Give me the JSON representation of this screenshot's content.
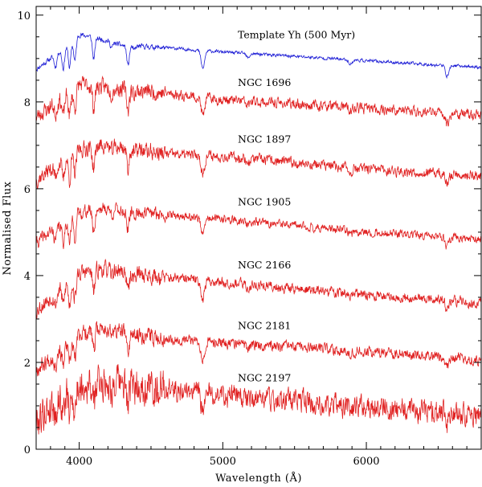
{
  "chart_data": {
    "type": "line",
    "title": "",
    "xlabel": "Wavelength (Å)",
    "ylabel": "Normalised Flux",
    "xlim": [
      3700,
      6800
    ],
    "ylim": [
      0,
      10.2
    ],
    "xticks": [
      4000,
      5000,
      6000
    ],
    "yticks": [
      0,
      2,
      4,
      6,
      8,
      10
    ],
    "grid": false,
    "absorption_lines": [
      {
        "w": 3835,
        "depth": 0.28
      },
      {
        "w": 3889,
        "depth": 0.45
      },
      {
        "w": 3933,
        "depth": 0.55
      },
      {
        "w": 3970,
        "depth": 0.5
      },
      {
        "w": 4101,
        "depth": 0.5
      },
      {
        "w": 4226,
        "depth": 0.12
      },
      {
        "w": 4340,
        "depth": 0.45
      },
      {
        "w": 4383,
        "depth": 0.1
      },
      {
        "w": 4861,
        "depth": 0.42
      },
      {
        "w": 5175,
        "depth": 0.1
      },
      {
        "w": 5890,
        "depth": 0.1
      },
      {
        "w": 6563,
        "depth": 0.25
      }
    ],
    "series": [
      {
        "name": "Template Yh (500 Myr)",
        "label": "Template Yh (500 Myr)",
        "color": "#1f1fd6",
        "anchors": [
          [
            3700,
            8.75
          ],
          [
            3800,
            9.0
          ],
          [
            3900,
            9.25
          ],
          [
            4000,
            9.55
          ],
          [
            4100,
            9.5
          ],
          [
            4300,
            9.3
          ],
          [
            4600,
            9.25
          ],
          [
            5000,
            9.15
          ],
          [
            5500,
            9.05
          ],
          [
            6000,
            8.95
          ],
          [
            6500,
            8.85
          ],
          [
            6800,
            8.8
          ]
        ],
        "noise": 0.03,
        "seed": 11
      },
      {
        "name": "NGC 1696",
        "label": "NGC 1696",
        "color": "#e02020",
        "anchors": [
          [
            3700,
            7.65
          ],
          [
            3800,
            7.9
          ],
          [
            3900,
            8.15
          ],
          [
            4000,
            8.4
          ],
          [
            4150,
            8.35
          ],
          [
            4300,
            8.3
          ],
          [
            4600,
            8.2
          ],
          [
            5000,
            8.05
          ],
          [
            5500,
            7.95
          ],
          [
            6000,
            7.85
          ],
          [
            6500,
            7.75
          ],
          [
            6800,
            7.7
          ]
        ],
        "noise": 0.1,
        "seed": 23
      },
      {
        "name": "NGC 1897",
        "label": "NGC 1897",
        "color": "#e02020",
        "anchors": [
          [
            3700,
            6.2
          ],
          [
            3800,
            6.45
          ],
          [
            3900,
            6.7
          ],
          [
            4000,
            6.9
          ],
          [
            4150,
            7.0
          ],
          [
            4300,
            6.95
          ],
          [
            4600,
            6.8
          ],
          [
            5000,
            6.75
          ],
          [
            5500,
            6.6
          ],
          [
            6000,
            6.45
          ],
          [
            6500,
            6.35
          ],
          [
            6800,
            6.3
          ]
        ],
        "noise": 0.1,
        "seed": 37
      },
      {
        "name": "NGC 1905",
        "label": "NGC 1905",
        "color": "#e02020",
        "anchors": [
          [
            3700,
            4.75
          ],
          [
            3800,
            5.0
          ],
          [
            3900,
            5.25
          ],
          [
            4000,
            5.45
          ],
          [
            4150,
            5.55
          ],
          [
            4300,
            5.5
          ],
          [
            4600,
            5.4
          ],
          [
            5000,
            5.3
          ],
          [
            5500,
            5.15
          ],
          [
            6000,
            5.0
          ],
          [
            6500,
            4.9
          ],
          [
            6800,
            4.85
          ]
        ],
        "noise": 0.08,
        "seed": 41
      },
      {
        "name": "NGC 2166",
        "label": "NGC 2166",
        "color": "#e02020",
        "anchors": [
          [
            3700,
            3.2
          ],
          [
            3800,
            3.5
          ],
          [
            3900,
            3.8
          ],
          [
            4000,
            4.05
          ],
          [
            4150,
            4.15
          ],
          [
            4300,
            4.1
          ],
          [
            4600,
            3.95
          ],
          [
            5000,
            3.85
          ],
          [
            5500,
            3.7
          ],
          [
            6000,
            3.55
          ],
          [
            6500,
            3.45
          ],
          [
            6800,
            3.35
          ]
        ],
        "noise": 0.1,
        "seed": 53
      },
      {
        "name": "NGC 2181",
        "label": "NGC 2181",
        "color": "#e02020",
        "anchors": [
          [
            3700,
            1.85
          ],
          [
            3800,
            2.1
          ],
          [
            3900,
            2.4
          ],
          [
            4000,
            2.65
          ],
          [
            4150,
            2.8
          ],
          [
            4300,
            2.7
          ],
          [
            4600,
            2.55
          ],
          [
            5000,
            2.45
          ],
          [
            5500,
            2.35
          ],
          [
            6000,
            2.25
          ],
          [
            6500,
            2.15
          ],
          [
            6800,
            2.05
          ]
        ],
        "noise": 0.1,
        "seed": 67
      },
      {
        "name": "NGC 2197",
        "label": "NGC 2197",
        "color": "#e02020",
        "anchors": [
          [
            3700,
            0.65
          ],
          [
            3800,
            1.0
          ],
          [
            3900,
            1.3
          ],
          [
            4000,
            1.45
          ],
          [
            4150,
            1.55
          ],
          [
            4300,
            1.5
          ],
          [
            4600,
            1.4
          ],
          [
            5000,
            1.25
          ],
          [
            5500,
            1.1
          ],
          [
            6000,
            0.95
          ],
          [
            6500,
            0.85
          ],
          [
            6800,
            0.78
          ]
        ],
        "noise": 0.22,
        "seed": 79
      }
    ]
  }
}
